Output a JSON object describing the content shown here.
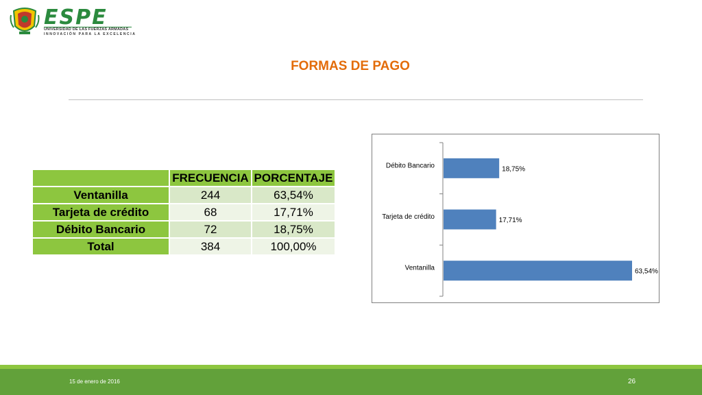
{
  "logo": {
    "brand": "ESPE",
    "subtitle_1": "UNIVERSIDAD DE LAS FUERZAS ARMADAS",
    "subtitle_2": "INNOVACIÓN PARA LA EXCELENCIA"
  },
  "slide": {
    "title": "FORMAS DE PAGO"
  },
  "table": {
    "headers": [
      "",
      "FRECUENCIA",
      "PORCENTAJE"
    ],
    "rows": [
      {
        "label": "Ventanilla",
        "frecuencia": "244",
        "porcentaje": "63,54%"
      },
      {
        "label": "Tarjeta de crédito",
        "frecuencia": "68",
        "porcentaje": "17,71%"
      },
      {
        "label": "Débito Bancario",
        "frecuencia": "72",
        "porcentaje": "18,75%"
      },
      {
        "label": "Total",
        "frecuencia": "384",
        "porcentaje": "100,00%"
      }
    ]
  },
  "chart_data": {
    "type": "bar",
    "orientation": "horizontal",
    "categories": [
      "Débito Bancario",
      "Tarjeta de crédito",
      "Ventanilla"
    ],
    "values": [
      18.75,
      17.71,
      63.54
    ],
    "value_labels": [
      "18,75%",
      "17,71%",
      "63,54%"
    ],
    "xlim": [
      0,
      63.54
    ],
    "bar_color": "#4f81bd",
    "grid": false
  },
  "footer": {
    "date": "15 de enero de 2016",
    "page": "26"
  },
  "colors": {
    "title": "#e36c0a",
    "accent_green": "#8dc63f",
    "footer_green": "#62a13a",
    "bar": "#4f81bd"
  }
}
